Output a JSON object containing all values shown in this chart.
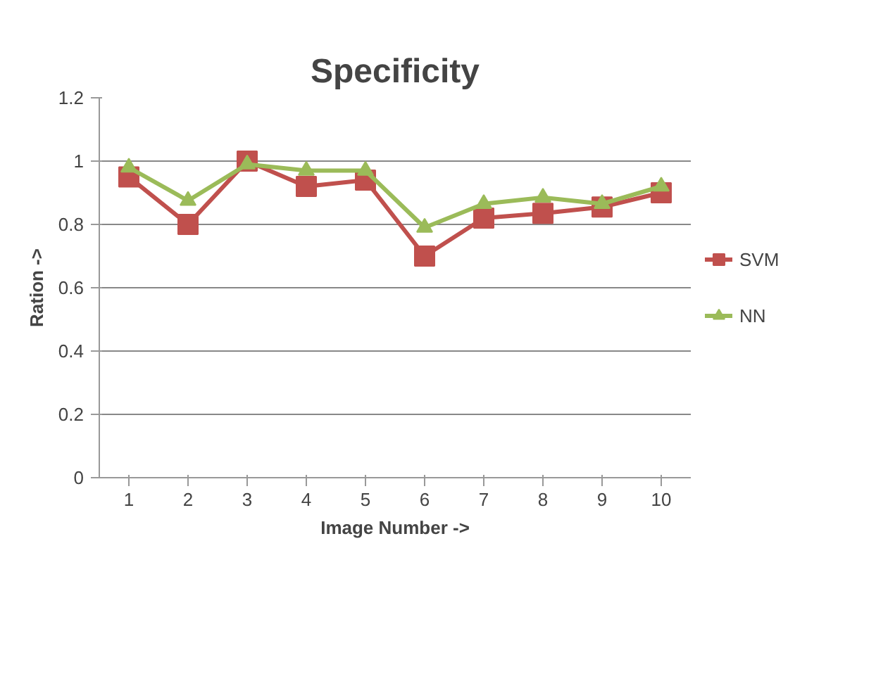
{
  "chart_data": {
    "type": "line",
    "title": "Specificity",
    "xlabel": "Image Number ->",
    "ylabel": "Ration ->",
    "categories": [
      "1",
      "2",
      "3",
      "4",
      "5",
      "6",
      "7",
      "8",
      "9",
      "10"
    ],
    "series": [
      {
        "name": "SVM",
        "color": "#c0504d",
        "marker": "square",
        "values": [
          0.95,
          0.8,
          1.0,
          0.92,
          0.94,
          0.7,
          0.82,
          0.835,
          0.855,
          0.9
        ]
      },
      {
        "name": "NN",
        "color": "#9bbb59",
        "marker": "triangle",
        "values": [
          0.98,
          0.875,
          0.99,
          0.97,
          0.97,
          0.79,
          0.865,
          0.885,
          0.865,
          0.92
        ]
      }
    ],
    "ylim": [
      0,
      1.2
    ],
    "yticks": [
      0,
      0.2,
      0.4,
      0.6,
      0.8,
      1,
      1.2
    ],
    "grid": "y",
    "legend": "right"
  }
}
